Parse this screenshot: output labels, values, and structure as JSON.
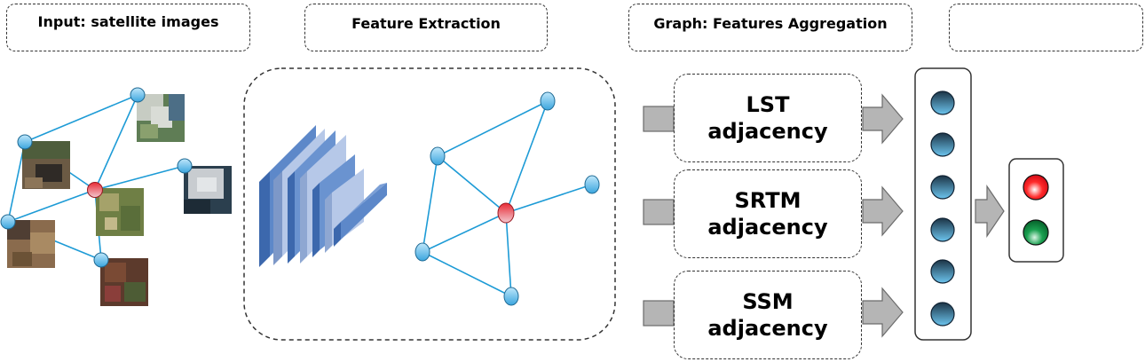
{
  "headers": {
    "input": "Input: satellite images",
    "feature_extraction": "Feature Extraction",
    "graph_aggregation": "Graph: Features Aggregation",
    "output": ""
  },
  "adjacency": [
    {
      "line1": "LST",
      "line2": "adjacency"
    },
    {
      "line1": "SRTM",
      "line2": "adjacency"
    },
    {
      "line1": "SSM",
      "line2": "adjacency"
    }
  ],
  "colors": {
    "edge": "#1d9bd6",
    "node_blue": "#5bbdec",
    "node_red": "#d61f2a",
    "node_dark": "#1f3f57",
    "arrow": "#b5b5b5",
    "cnn_front": "#4d7cc2",
    "cnn_light": "#9fb8e3",
    "output_red": "#e8101a",
    "output_green": "#0f8a3c"
  },
  "icons": {
    "satellite_tile": "satellite-image-icon",
    "cnn_layers": "cnn-layers-icon",
    "graph_node": "graph-node-icon",
    "neuron": "neuron-icon",
    "arrow": "arrow-icon"
  }
}
